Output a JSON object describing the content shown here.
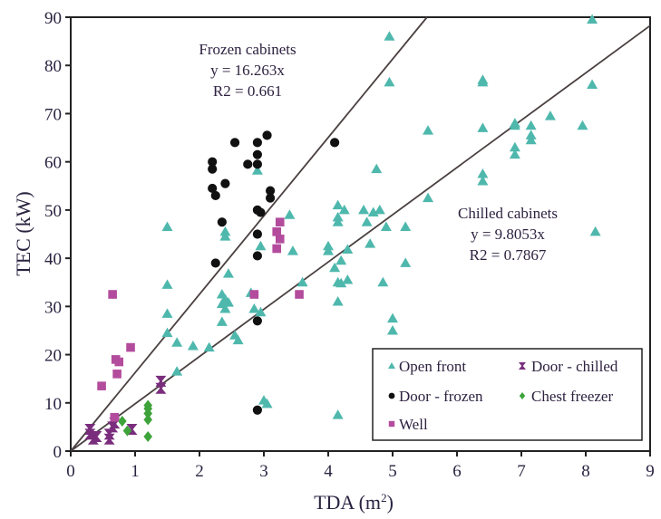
{
  "chart_data": {
    "type": "scatter",
    "title": "",
    "xlabel": "TDA (m",
    "xlabel_sup": "2",
    "xlabel_close": ")",
    "ylabel": "TEC (kW)",
    "xlim": [
      0,
      9
    ],
    "ylim": [
      0,
      90
    ],
    "x_ticks": [
      "0",
      "1",
      "2",
      "3",
      "4",
      "5",
      "6",
      "7",
      "8",
      "9"
    ],
    "y_ticks": [
      "0",
      "10",
      "20",
      "30",
      "40",
      "50",
      "60",
      "70",
      "80",
      "90"
    ],
    "grid": false,
    "legend_position": "bottom-right",
    "series": [
      {
        "name": "Open front",
        "marker": "triangle",
        "color": "#4fb8ad",
        "points": [
          [
            1.5,
            46.5
          ],
          [
            1.5,
            34.5
          ],
          [
            1.5,
            28.5
          ],
          [
            1.5,
            24.5
          ],
          [
            1.65,
            22.5
          ],
          [
            1.65,
            16.5
          ],
          [
            1.9,
            21.8
          ],
          [
            2.15,
            21.5
          ],
          [
            2.35,
            32.5
          ],
          [
            2.35,
            30.5
          ],
          [
            2.4,
            31.5
          ],
          [
            2.4,
            29.5
          ],
          [
            2.45,
            30.8
          ],
          [
            2.35,
            26.8
          ],
          [
            2.4,
            45.5
          ],
          [
            2.4,
            44.5
          ],
          [
            2.45,
            36.8
          ],
          [
            2.55,
            24.0
          ],
          [
            2.6,
            23.0
          ],
          [
            2.8,
            32.8
          ],
          [
            2.85,
            29.5
          ],
          [
            2.9,
            58.2
          ],
          [
            2.95,
            42.5
          ],
          [
            2.95,
            28.8
          ],
          [
            3.0,
            10.5
          ],
          [
            3.05,
            9.8
          ],
          [
            3.4,
            49.0
          ],
          [
            3.45,
            41.5
          ],
          [
            3.6,
            35.0
          ],
          [
            4.0,
            41.5
          ],
          [
            4.0,
            42.5
          ],
          [
            4.1,
            38.0
          ],
          [
            4.15,
            51.0
          ],
          [
            4.15,
            48.5
          ],
          [
            4.15,
            47.5
          ],
          [
            4.2,
            39.5
          ],
          [
            4.25,
            50.0
          ],
          [
            4.15,
            35.0
          ],
          [
            4.2,
            34.8
          ],
          [
            4.3,
            35.5
          ],
          [
            4.3,
            41.8
          ],
          [
            4.15,
            31.0
          ],
          [
            4.15,
            7.5
          ],
          [
            4.55,
            50.0
          ],
          [
            4.6,
            47.5
          ],
          [
            4.65,
            43.0
          ],
          [
            4.7,
            49.5
          ],
          [
            4.75,
            58.5
          ],
          [
            4.8,
            50.0
          ],
          [
            4.85,
            35.0
          ],
          [
            4.9,
            46.5
          ],
          [
            4.95,
            86.0
          ],
          [
            4.95,
            76.5
          ],
          [
            5.0,
            27.5
          ],
          [
            5.0,
            25.0
          ],
          [
            5.2,
            46.5
          ],
          [
            5.2,
            39.0
          ],
          [
            5.55,
            66.5
          ],
          [
            5.55,
            52.5
          ],
          [
            6.4,
            77.0
          ],
          [
            6.4,
            76.5
          ],
          [
            6.4,
            67.0
          ],
          [
            6.4,
            57.5
          ],
          [
            6.4,
            56.0
          ],
          [
            6.9,
            68.0
          ],
          [
            6.9,
            67.5
          ],
          [
            6.9,
            63.0
          ],
          [
            6.9,
            61.5
          ],
          [
            7.15,
            67.5
          ],
          [
            7.15,
            65.5
          ],
          [
            7.15,
            64.5
          ],
          [
            7.45,
            69.5
          ],
          [
            7.95,
            67.5
          ],
          [
            8.1,
            89.5
          ],
          [
            8.1,
            76.0
          ],
          [
            8.15,
            45.5
          ]
        ]
      },
      {
        "name": "Door - chilled",
        "marker": "x-bar",
        "color": "#7a2d7d",
        "points": [
          [
            0.3,
            4.5
          ],
          [
            0.3,
            3.5
          ],
          [
            0.35,
            2.5
          ],
          [
            0.4,
            3.0
          ],
          [
            0.6,
            3.5
          ],
          [
            0.6,
            2.5
          ],
          [
            0.65,
            5.0
          ],
          [
            0.68,
            5.8
          ],
          [
            0.95,
            4.5
          ],
          [
            1.4,
            14.5
          ],
          [
            1.4,
            13.0
          ]
        ]
      },
      {
        "name": "Door - frozen",
        "marker": "circle",
        "color": "#111111",
        "points": [
          [
            2.2,
            60.0
          ],
          [
            2.2,
            58.5
          ],
          [
            2.2,
            54.5
          ],
          [
            2.25,
            53.0
          ],
          [
            2.25,
            39.0
          ],
          [
            2.35,
            47.5
          ],
          [
            2.4,
            55.5
          ],
          [
            2.55,
            64.0
          ],
          [
            2.75,
            59.5
          ],
          [
            2.9,
            64.0
          ],
          [
            2.9,
            61.5
          ],
          [
            2.9,
            59.5
          ],
          [
            2.9,
            50.0
          ],
          [
            2.95,
            49.5
          ],
          [
            2.9,
            45.0
          ],
          [
            2.9,
            40.5
          ],
          [
            2.9,
            27.0
          ],
          [
            2.9,
            8.5
          ],
          [
            3.05,
            65.5
          ],
          [
            3.1,
            54.0
          ],
          [
            3.1,
            52.5
          ],
          [
            4.1,
            64.0
          ]
        ]
      },
      {
        "name": "Chest freezer",
        "marker": "diamond",
        "color": "#3da33a",
        "points": [
          [
            0.8,
            6.2
          ],
          [
            0.88,
            4.2
          ],
          [
            1.2,
            9.5
          ],
          [
            1.2,
            8.8
          ],
          [
            1.2,
            7.8
          ],
          [
            1.2,
            6.5
          ],
          [
            1.2,
            3.0
          ]
        ]
      },
      {
        "name": "Well",
        "marker": "square",
        "color": "#b34c9d",
        "points": [
          [
            0.65,
            32.5
          ],
          [
            0.48,
            13.5
          ],
          [
            0.7,
            19.0
          ],
          [
            0.75,
            18.5
          ],
          [
            0.72,
            16.0
          ],
          [
            0.93,
            21.5
          ],
          [
            0.68,
            7.0
          ],
          [
            2.85,
            32.5
          ],
          [
            3.2,
            45.5
          ],
          [
            3.25,
            47.5
          ],
          [
            3.25,
            44.0
          ],
          [
            3.2,
            42.0
          ],
          [
            3.55,
            32.5
          ]
        ]
      }
    ],
    "trendlines": [
      {
        "name": "Frozen cabinets",
        "equation": "y = 16.263x",
        "r2_text": "R2 = 0.661",
        "slope": 16.263
      },
      {
        "name": "Chilled cabinets",
        "equation": "y = 9.8053x",
        "r2_text": "R2 = 0.7867",
        "slope": 9.8053
      }
    ]
  }
}
